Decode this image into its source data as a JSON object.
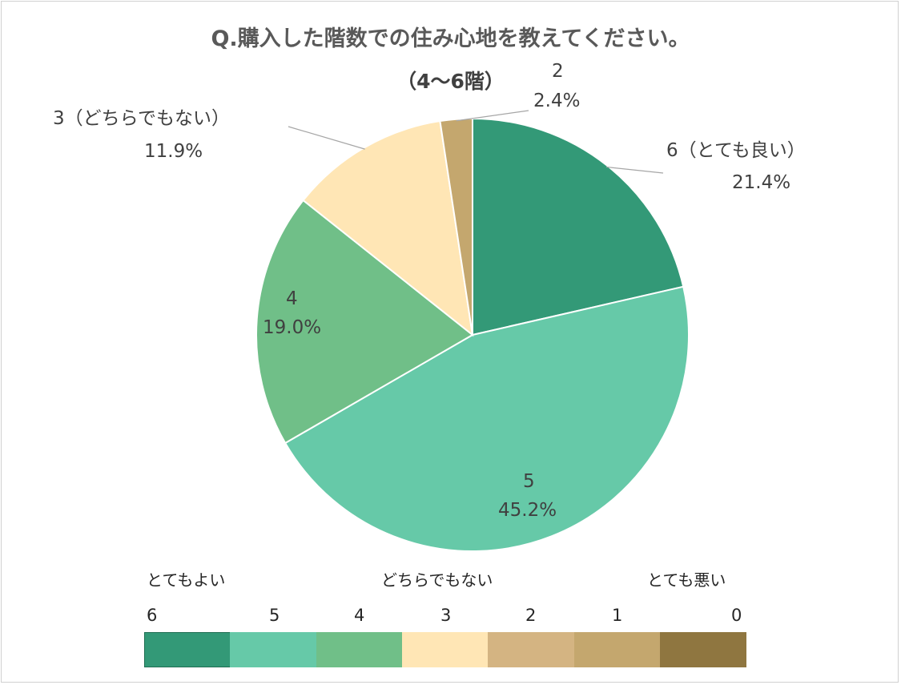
{
  "title": "Q.購入した階数での住み心地を教えてください。",
  "subtitle": "（4〜6階）",
  "chart_data": {
    "type": "pie",
    "title": "Q.購入した階数での住み心地を教えてください。",
    "subtitle": "（4〜6階）",
    "slices": [
      {
        "label": "6（とても良い）",
        "value": 21.4,
        "pct": "21.4%",
        "color": "#339977"
      },
      {
        "label": "5",
        "value": 45.2,
        "pct": "45.2%",
        "color": "#66c9a8"
      },
      {
        "label": "4",
        "value": 19.0,
        "pct": "19.0%",
        "color": "#70bf88"
      },
      {
        "label": "3（どちらでもない）",
        "value": 11.9,
        "pct": "11.9%",
        "color": "#ffe6b5"
      },
      {
        "label": "2",
        "value": 2.4,
        "pct": "2.4%",
        "color": "#c4a76e"
      }
    ]
  },
  "scale": {
    "labels": {
      "high": "とてもよい",
      "mid": "どちらでもない",
      "low": "とても悪い"
    },
    "steps": [
      {
        "num": "6",
        "color": "#339977"
      },
      {
        "num": "5",
        "color": "#66c9a8"
      },
      {
        "num": "4",
        "color": "#70bf88"
      },
      {
        "num": "3",
        "color": "#ffe6b5"
      },
      {
        "num": "2",
        "color": "#d4b482"
      },
      {
        "num": "1",
        "color": "#c4a76e"
      },
      {
        "num": "0",
        "color": "#8f7640"
      }
    ]
  }
}
